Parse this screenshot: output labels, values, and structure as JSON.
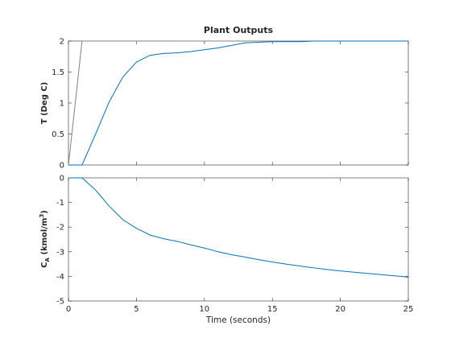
{
  "figure": {
    "background": "#ffffff"
  },
  "chart_data": [
    {
      "type": "line",
      "title": "Plant Outputs",
      "xlabel": "",
      "ylabel": "T (Deg C)",
      "xlim": [
        0,
        25
      ],
      "ylim": [
        0,
        2
      ],
      "xticks": [
        0,
        5,
        10,
        15,
        20,
        25
      ],
      "xtick_labels": [
        "",
        "",
        "",
        "",
        "",
        ""
      ],
      "yticks": [
        0,
        0.5,
        1,
        1.5,
        2
      ],
      "ytick_labels": [
        "0",
        "0.5",
        "1",
        "1.5",
        "2"
      ],
      "grid": false,
      "series": [
        {
          "color": "#808080",
          "x": [
            0,
            1,
            25
          ],
          "y": [
            0,
            2,
            2
          ]
        },
        {
          "color": "#0072bd",
          "x": [
            0,
            1,
            2,
            3,
            4,
            5,
            6,
            7,
            8,
            9,
            10,
            11,
            12,
            13,
            14,
            15,
            16,
            17,
            18,
            19,
            20,
            21,
            22,
            23,
            24,
            25
          ],
          "y": [
            0,
            0,
            0.5,
            1.02,
            1.42,
            1.66,
            1.77,
            1.8,
            1.81,
            1.83,
            1.86,
            1.89,
            1.93,
            1.97,
            1.98,
            1.99,
            1.99,
            1.99,
            2.0,
            2.0,
            2.0,
            2.0,
            2.0,
            2.0,
            2.0,
            2.0
          ]
        }
      ]
    },
    {
      "type": "line",
      "title": "",
      "xlabel": "Time (seconds)",
      "ylabel_main": "C",
      "ylabel_sub": "A",
      "ylabel_rest": " (kmol/m",
      "ylabel_sup": "3",
      "ylabel_end": ")",
      "xlim": [
        0,
        25
      ],
      "ylim": [
        -5,
        0
      ],
      "xticks": [
        0,
        5,
        10,
        15,
        20,
        25
      ],
      "xtick_labels": [
        "0",
        "5",
        "10",
        "15",
        "20",
        "25"
      ],
      "yticks": [
        -5,
        -4,
        -3,
        -2,
        -1,
        0
      ],
      "ytick_labels": [
        "-5",
        "-4",
        "-3",
        "-2",
        "-1",
        "0"
      ],
      "grid": false,
      "series": [
        {
          "color": "#808080",
          "x": [
            0,
            25
          ],
          "y": [
            0,
            0
          ]
        },
        {
          "color": "#0072bd",
          "x": [
            0,
            1,
            2,
            3,
            4,
            5,
            6,
            7,
            8,
            9,
            10,
            11,
            12,
            13,
            14,
            15,
            16,
            17,
            18,
            19,
            20,
            21,
            22,
            23,
            24,
            25
          ],
          "y": [
            0,
            0,
            -0.5,
            -1.15,
            -1.7,
            -2.05,
            -2.32,
            -2.47,
            -2.58,
            -2.72,
            -2.85,
            -3.0,
            -3.12,
            -3.22,
            -3.32,
            -3.42,
            -3.5,
            -3.58,
            -3.65,
            -3.72,
            -3.78,
            -3.83,
            -3.88,
            -3.93,
            -3.98,
            -4.03
          ]
        }
      ]
    }
  ]
}
